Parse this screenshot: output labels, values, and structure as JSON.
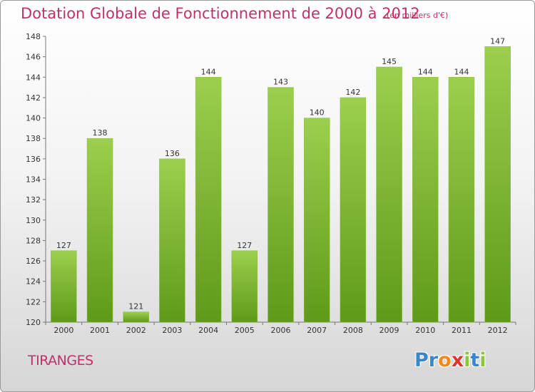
{
  "header": {
    "title": "Dotation Globale de Fonctionnement de 2000 à 2012",
    "unit_note": "(en milliers d'€)"
  },
  "footer": {
    "commune": "TIRANGES",
    "logo_letters": [
      "P",
      "r",
      "o",
      "x",
      "i",
      "t",
      "i"
    ]
  },
  "colors": {
    "title": "#c0306a",
    "bar_top": "#9ccf4e",
    "bar_bottom": "#5e9a18",
    "logo": [
      "#3a86c8",
      "#3a86c8",
      "#f08a1c",
      "#e0352b",
      "#8cc63f",
      "#3a86c8",
      "#8cc63f"
    ]
  },
  "chart_data": {
    "type": "bar",
    "title": "Dotation Globale de Fonctionnement de 2000 à 2012",
    "categories": [
      "2000",
      "2001",
      "2002",
      "2003",
      "2004",
      "2005",
      "2006",
      "2007",
      "2008",
      "2009",
      "2010",
      "2011",
      "2012"
    ],
    "values": [
      127,
      138,
      121,
      136,
      144,
      127,
      143,
      140,
      142,
      145,
      144,
      144,
      147
    ],
    "ylim": [
      120,
      148
    ],
    "yticks": [
      120,
      122,
      124,
      126,
      128,
      130,
      132,
      134,
      136,
      138,
      140,
      142,
      144,
      146,
      148
    ],
    "grid": false,
    "legend": "none"
  }
}
